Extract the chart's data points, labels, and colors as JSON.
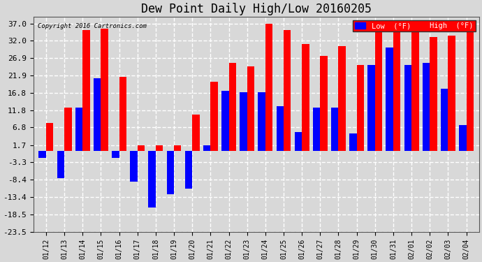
{
  "title": "Dew Point Daily High/Low 20160205",
  "copyright": "Copyright 2016 Cartronics.com",
  "dates": [
    "01/12",
    "01/13",
    "01/14",
    "01/15",
    "01/16",
    "01/17",
    "01/18",
    "01/19",
    "01/20",
    "01/21",
    "01/22",
    "01/23",
    "01/24",
    "01/25",
    "01/26",
    "01/27",
    "01/28",
    "01/29",
    "01/30",
    "01/31",
    "02/01",
    "02/02",
    "02/03",
    "02/04"
  ],
  "high": [
    8.0,
    12.5,
    35.0,
    35.5,
    21.5,
    1.7,
    1.7,
    1.7,
    10.5,
    20.0,
    25.5,
    24.5,
    37.0,
    35.0,
    31.0,
    27.5,
    30.5,
    25.0,
    37.5,
    37.5,
    37.5,
    33.0,
    33.5,
    37.0
  ],
  "low": [
    -2.0,
    -8.0,
    12.5,
    21.0,
    -2.0,
    -9.0,
    -16.5,
    -12.5,
    -11.0,
    1.7,
    17.5,
    17.0,
    17.0,
    13.0,
    5.5,
    12.5,
    12.5,
    5.0,
    25.0,
    30.0,
    25.0,
    25.5,
    18.0,
    7.5
  ],
  "high_color": "#ff0000",
  "low_color": "#0000ff",
  "bg_color": "#d8d8d8",
  "plot_bg_color": "#d8d8d8",
  "grid_color": "#ffffff",
  "ylim": [
    -23.5,
    39.0
  ],
  "yticks": [
    37.0,
    32.0,
    26.9,
    21.9,
    16.8,
    11.8,
    6.8,
    1.7,
    -3.3,
    -8.4,
    -13.4,
    -18.5,
    -23.5
  ],
  "title_fontsize": 12,
  "bar_width": 0.4,
  "legend_labels": [
    "Low  (°F)",
    "High  (°F)"
  ]
}
